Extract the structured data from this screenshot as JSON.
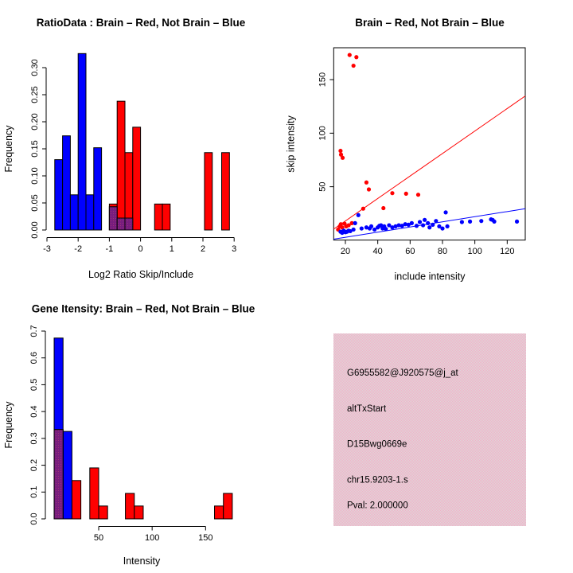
{
  "window_title": "R Graphics Device (2x2 plots)",
  "colors": {
    "brain_red": "#ff0000",
    "not_brain_blue": "#0000ff",
    "overlap_purple_base": "#771d7e",
    "overlap_purple_dot": "#a03277",
    "panel_pink_a": "#f4afc7",
    "panel_pink_b": "#dcd9da",
    "pval_dark_red": "#9e2026",
    "axis_black": "#000000",
    "background": "#ffffff"
  },
  "chart_data": [
    {
      "id": "ratio_histogram",
      "type": "histogram",
      "title": "RatioData : Brain – Red, Not Brain – Blue",
      "xlabel": "Log2 Ratio Skip/Include",
      "ylabel": "Frequency",
      "xlim": [
        -3,
        3
      ],
      "ylim": [
        0,
        0.3
      ],
      "xticks": [
        -3,
        -2,
        -1,
        0,
        1,
        2,
        3
      ],
      "xtick_labels": [
        "-3",
        "-2",
        "-1",
        "0",
        "1",
        "2",
        "3"
      ],
      "yticks": [
        0,
        0.05,
        0.1,
        0.15,
        0.2,
        0.25,
        0.3
      ],
      "ytick_labels": [
        "0.00",
        "0.05",
        "0.10",
        "0.15",
        "0.20",
        "0.25",
        "0.30"
      ],
      "grid": false,
      "legend": "title encodes colors: Brain = red, Not Brain = blue",
      "series": [
        {
          "name": "Not Brain (blue)",
          "color_key": "not_brain_blue",
          "bars": [
            {
              "x0": -2.75,
              "x1": -2.5,
              "h": 0.13
            },
            {
              "x0": -2.5,
              "x1": -2.25,
              "h": 0.174
            },
            {
              "x0": -2.25,
              "x1": -2.0,
              "h": 0.065
            },
            {
              "x0": -2.0,
              "x1": -1.75,
              "h": 0.326
            },
            {
              "x0": -1.75,
              "x1": -1.5,
              "h": 0.065
            },
            {
              "x0": -1.5,
              "x1": -1.25,
              "h": 0.152
            },
            {
              "x0": -1.0,
              "x1": -0.75,
              "h": 0.043
            },
            {
              "x0": -0.75,
              "x1": -0.5,
              "h": 0.022
            },
            {
              "x0": -0.5,
              "x1": -0.25,
              "h": 0.022
            }
          ]
        },
        {
          "name": "Brain (red)",
          "color_key": "brain_red",
          "bars": [
            {
              "x0": -1.0,
              "x1": -0.75,
              "h": 0.048
            },
            {
              "x0": -0.75,
              "x1": -0.5,
              "h": 0.238
            },
            {
              "x0": -0.5,
              "x1": -0.25,
              "h": 0.143
            },
            {
              "x0": -0.25,
              "x1": 0.0,
              "h": 0.19
            },
            {
              "x0": 0.45,
              "x1": 0.7,
              "h": 0.048
            },
            {
              "x0": 0.7,
              "x1": 0.95,
              "h": 0.048
            },
            {
              "x0": 2.05,
              "x1": 2.3,
              "h": 0.143
            },
            {
              "x0": 2.6,
              "x1": 2.85,
              "h": 0.143
            }
          ]
        },
        {
          "name": "overlap (purple)",
          "color_key": "overlap_purple_base",
          "bars": [
            {
              "x0": -1.0,
              "x1": -0.75,
              "h": 0.043
            },
            {
              "x0": -0.75,
              "x1": -0.5,
              "h": 0.022
            },
            {
              "x0": -0.5,
              "x1": -0.25,
              "h": 0.022
            }
          ]
        }
      ]
    },
    {
      "id": "intensity_scatter",
      "type": "scatter",
      "title": "Brain – Red, Not Brain – Blue",
      "xlabel": "include intensity",
      "ylabel": "skip intensity",
      "xlim": [
        12.8,
        131
      ],
      "ylim": [
        0,
        182
      ],
      "xticks": [
        20,
        40,
        60,
        80,
        100,
        120
      ],
      "yticks": [
        50,
        100,
        150
      ],
      "grid": false,
      "box": true,
      "series": [
        {
          "name": "Brain (red)",
          "color_key": "brain_red",
          "line_fit": {
            "slope": 1.05,
            "intercept": -3
          },
          "points": [
            [
              22.6,
              173
            ],
            [
              26.8,
              171
            ],
            [
              25,
              163
            ],
            [
              17,
              83.5
            ],
            [
              17.3,
              80
            ],
            [
              18.3,
              77
            ],
            [
              33,
              54
            ],
            [
              34.5,
              47.5
            ],
            [
              49,
              44
            ],
            [
              57.5,
              43.5
            ],
            [
              65,
              42.5
            ],
            [
              31,
              29.5
            ],
            [
              43.5,
              30
            ],
            [
              15.5,
              10
            ],
            [
              16.5,
              13
            ],
            [
              17.2,
              15
            ],
            [
              18,
              12
            ],
            [
              19.5,
              15.5
            ],
            [
              20.5,
              13
            ],
            [
              22,
              14
            ],
            [
              24,
              16
            ]
          ]
        },
        {
          "name": "Not Brain (blue)",
          "color_key": "not_brain_blue",
          "line_fit": {
            "slope": 0.24,
            "intercept": -2
          },
          "points": [
            [
              17,
              8
            ],
            [
              18,
              7
            ],
            [
              19,
              9
            ],
            [
              20,
              7.5
            ],
            [
              21,
              8
            ],
            [
              22,
              9
            ],
            [
              23,
              8.5
            ],
            [
              25,
              10
            ],
            [
              26,
              16
            ],
            [
              28,
              23.5
            ],
            [
              30,
              11
            ],
            [
              33,
              12
            ],
            [
              35,
              11
            ],
            [
              36,
              13
            ],
            [
              38,
              10
            ],
            [
              40,
              12
            ],
            [
              41,
              13.5
            ],
            [
              42,
              14
            ],
            [
              43,
              11
            ],
            [
              44,
              13
            ],
            [
              45,
              10.5
            ],
            [
              47,
              14
            ],
            [
              49,
              12
            ],
            [
              51,
              13
            ],
            [
              53,
              14
            ],
            [
              55,
              13.5
            ],
            [
              57,
              15
            ],
            [
              59,
              14.5
            ],
            [
              61,
              16
            ],
            [
              64,
              13.5
            ],
            [
              66,
              17
            ],
            [
              68,
              14
            ],
            [
              69,
              19
            ],
            [
              71,
              16
            ],
            [
              72,
              12
            ],
            [
              74,
              14.5
            ],
            [
              76,
              18
            ],
            [
              78,
              13
            ],
            [
              80,
              11
            ],
            [
              82,
              26
            ],
            [
              83,
              13
            ],
            [
              92,
              17
            ],
            [
              97,
              17.5
            ],
            [
              104,
              18
            ],
            [
              110,
              19.5
            ],
            [
              111,
              19
            ],
            [
              112,
              17.5
            ],
            [
              126,
              17.5
            ]
          ]
        }
      ]
    },
    {
      "id": "gene_intensity_histogram",
      "type": "histogram",
      "title": "Gene Itensity: Brain – Red, Not Brain – Blue",
      "xlabel": "Intensity",
      "ylabel": "Frequency",
      "xlim": [
        4,
        179
      ],
      "ylim": [
        0,
        0.7
      ],
      "xticks": [
        50,
        100,
        150
      ],
      "xtick_labels": [
        "50",
        "100",
        "150"
      ],
      "x_axis_span": [
        50,
        150
      ],
      "yticks": [
        0,
        0.1,
        0.2,
        0.3,
        0.4,
        0.5,
        0.6,
        0.7
      ],
      "ytick_labels": [
        "0.0",
        "0.1",
        "0.2",
        "0.3",
        "0.4",
        "0.5",
        "0.6",
        "0.7"
      ],
      "grid": false,
      "series": [
        {
          "name": "Not Brain (blue)",
          "color_key": "not_brain_blue",
          "bars": [
            {
              "x0": 8.33,
              "x1": 16.67,
              "h": 0.674
            },
            {
              "x0": 16.67,
              "x1": 25,
              "h": 0.326
            }
          ]
        },
        {
          "name": "Brain (red)",
          "color_key": "brain_red",
          "bars": [
            {
              "x0": 8.33,
              "x1": 16.67,
              "h": 0.333
            },
            {
              "x0": 25,
              "x1": 33.33,
              "h": 0.143
            },
            {
              "x0": 41.67,
              "x1": 50,
              "h": 0.19
            },
            {
              "x0": 50,
              "x1": 58.33,
              "h": 0.048
            },
            {
              "x0": 75,
              "x1": 83.33,
              "h": 0.095
            },
            {
              "x0": 83.33,
              "x1": 91.67,
              "h": 0.048
            },
            {
              "x0": 158.33,
              "x1": 166.67,
              "h": 0.048
            },
            {
              "x0": 166.67,
              "x1": 175,
              "h": 0.095
            }
          ]
        },
        {
          "name": "overlap (purple)",
          "color_key": "overlap_purple_base",
          "bars": [
            {
              "x0": 8.33,
              "x1": 16.67,
              "h": 0.333
            }
          ]
        }
      ]
    },
    {
      "id": "info_panel",
      "type": "text_panel",
      "background_key": "panel_pink",
      "lines": [
        {
          "text": "G6955582@J920575@j_at",
          "color_key": "axis_black"
        },
        {
          "text": "altTxStart",
          "color_key": "axis_black"
        },
        {
          "text": "D15Bwg0669e",
          "color_key": "axis_black"
        },
        {
          "text": "chr15.9203-1.s",
          "color_key": "axis_black"
        },
        {
          "text": "Pval: 2.000000",
          "color_key": "pval_dark_red"
        }
      ]
    }
  ]
}
